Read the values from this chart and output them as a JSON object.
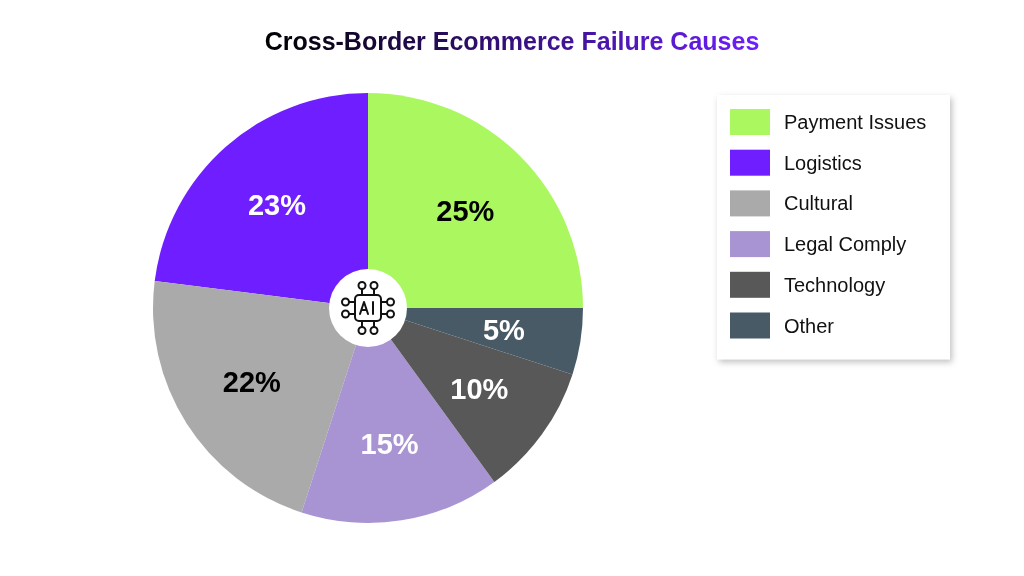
{
  "chart_data": {
    "type": "pie",
    "title": "Cross-Border Ecommerce Failure Causes",
    "categories": [
      "Payment Issues",
      "Logistics",
      "Cultural",
      "Legal Comply",
      "Technology",
      "Other"
    ],
    "values": [
      25,
      23,
      22,
      15,
      10,
      5
    ],
    "colors": [
      "#abf75f",
      "#6e1eff",
      "#aaaaaa",
      "#a994d3",
      "#585858",
      "#475a66"
    ],
    "value_labels": [
      "25%",
      "23%",
      "22%",
      "15%",
      "10%",
      "5%"
    ],
    "legend": "right"
  }
}
